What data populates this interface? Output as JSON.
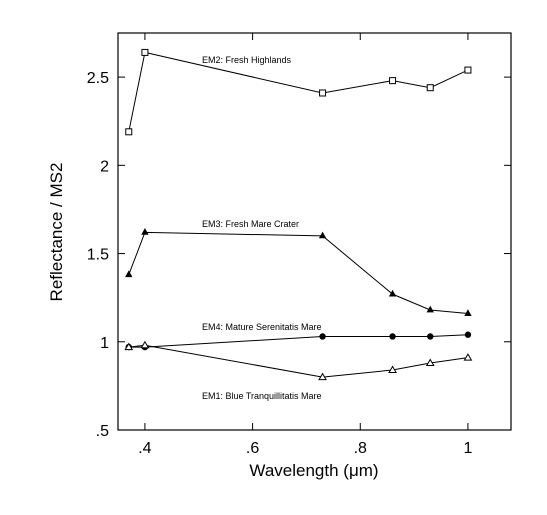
{
  "chart_data": {
    "type": "line",
    "title": "",
    "xlabel": "Wavelength (μm)",
    "ylabel": "Reflectance / MS2",
    "xlim": [
      0.35,
      1.08
    ],
    "ylim": [
      0.5,
      2.75
    ],
    "x_ticks": [
      0.4,
      0.6,
      0.8,
      1.0
    ],
    "x_tick_labels": [
      ".4",
      ".6",
      ".8",
      "1"
    ],
    "y_ticks": [
      0.5,
      1.0,
      1.5,
      2.0,
      2.5
    ],
    "y_tick_labels": [
      ".5",
      "1",
      "1.5",
      "2",
      "2.5"
    ],
    "grid": false,
    "legend": "none",
    "series": [
      {
        "name": "EM2: Fresh Highlands",
        "marker": "open-square",
        "x": [
          0.37,
          0.4,
          0.73,
          0.86,
          0.93,
          1.0
        ],
        "y": [
          2.19,
          2.64,
          2.41,
          2.48,
          2.44,
          2.54
        ]
      },
      {
        "name": "EM3: Fresh Mare Crater",
        "marker": "filled-triangle",
        "x": [
          0.37,
          0.4,
          0.73,
          0.86,
          0.93,
          1.0
        ],
        "y": [
          1.38,
          1.62,
          1.6,
          1.27,
          1.18,
          1.16
        ]
      },
      {
        "name": "EM4: Mature Serenitatis Mare",
        "marker": "filled-circle",
        "x": [
          0.37,
          0.4,
          0.73,
          0.86,
          0.93,
          1.0
        ],
        "y": [
          0.97,
          0.97,
          1.03,
          1.03,
          1.03,
          1.04
        ]
      },
      {
        "name": "EM1: Blue Tranquillitatis Mare",
        "marker": "open-triangle",
        "x": [
          0.37,
          0.4,
          0.73,
          0.86,
          0.93,
          1.0
        ],
        "y": [
          0.97,
          0.98,
          0.8,
          0.84,
          0.88,
          0.91
        ]
      }
    ]
  }
}
